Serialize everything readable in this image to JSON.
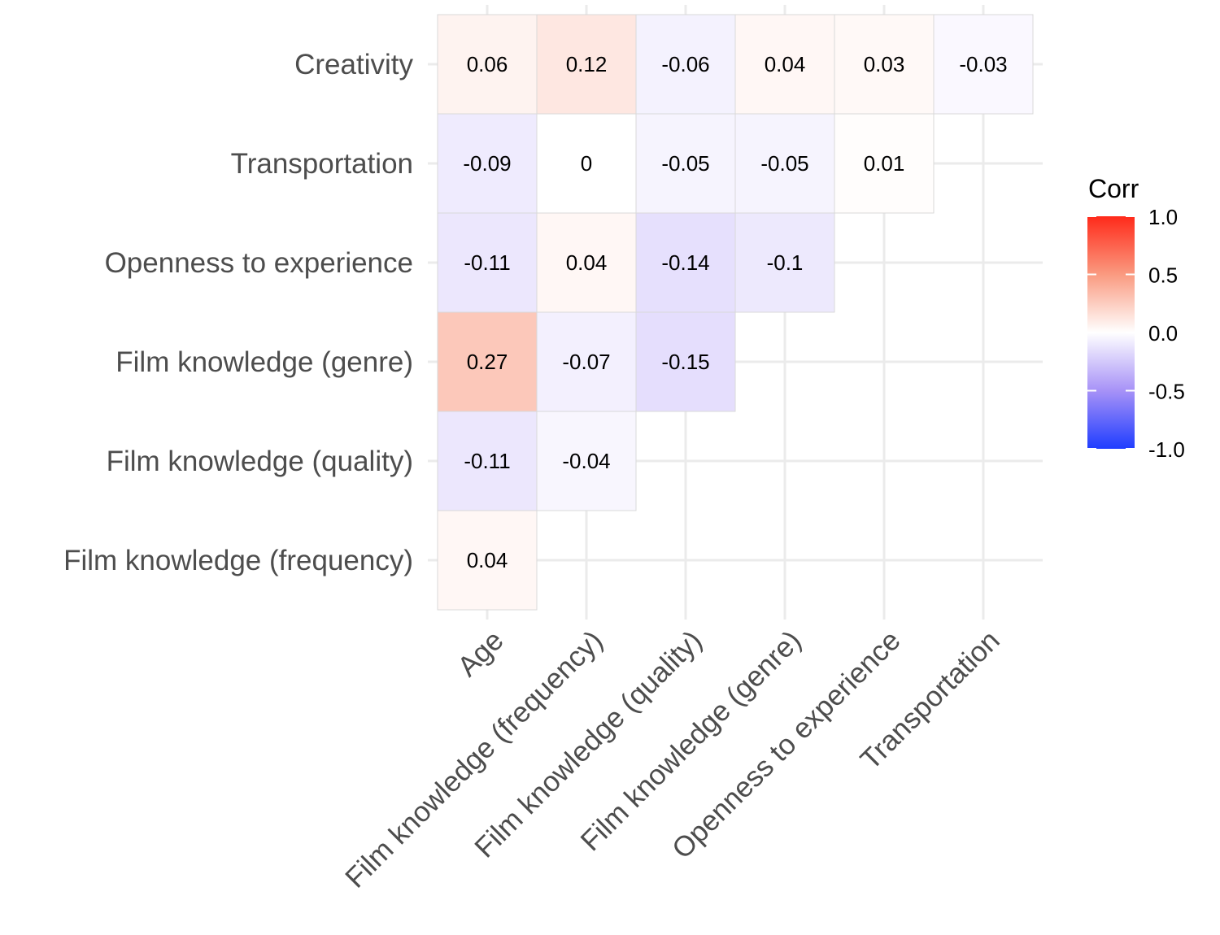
{
  "chart_data": {
    "type": "heatmap",
    "title": "",
    "xlabel": "",
    "ylabel": "",
    "x_categories": [
      "Age",
      "Film knowledge (frequency)",
      "Film knowledge (quality)",
      "Film knowledge (genre)",
      "Openness to experience",
      "Transportation"
    ],
    "y_categories": [
      "Film knowledge (frequency)",
      "Film knowledge (quality)",
      "Film knowledge (genre)",
      "Openness to experience",
      "Transportation",
      "Creativity"
    ],
    "cells": [
      {
        "x": "Age",
        "y": "Creativity",
        "value": 0.06
      },
      {
        "x": "Film knowledge (frequency)",
        "y": "Creativity",
        "value": 0.12
      },
      {
        "x": "Film knowledge (quality)",
        "y": "Creativity",
        "value": -0.06
      },
      {
        "x": "Film knowledge (genre)",
        "y": "Creativity",
        "value": 0.04
      },
      {
        "x": "Openness to experience",
        "y": "Creativity",
        "value": 0.03
      },
      {
        "x": "Transportation",
        "y": "Creativity",
        "value": -0.03
      },
      {
        "x": "Age",
        "y": "Transportation",
        "value": -0.09
      },
      {
        "x": "Film knowledge (frequency)",
        "y": "Transportation",
        "value": 0
      },
      {
        "x": "Film knowledge (quality)",
        "y": "Transportation",
        "value": -0.05
      },
      {
        "x": "Film knowledge (genre)",
        "y": "Transportation",
        "value": -0.05
      },
      {
        "x": "Openness to experience",
        "y": "Transportation",
        "value": 0.01
      },
      {
        "x": "Age",
        "y": "Openness to experience",
        "value": -0.11
      },
      {
        "x": "Film knowledge (frequency)",
        "y": "Openness to experience",
        "value": 0.04
      },
      {
        "x": "Film knowledge (quality)",
        "y": "Openness to experience",
        "value": -0.14
      },
      {
        "x": "Film knowledge (genre)",
        "y": "Openness to experience",
        "value": -0.1
      },
      {
        "x": "Age",
        "y": "Film knowledge (genre)",
        "value": 0.27
      },
      {
        "x": "Film knowledge (frequency)",
        "y": "Film knowledge (genre)",
        "value": -0.07
      },
      {
        "x": "Film knowledge (quality)",
        "y": "Film knowledge (genre)",
        "value": -0.15
      },
      {
        "x": "Age",
        "y": "Film knowledge (quality)",
        "value": -0.11
      },
      {
        "x": "Film knowledge (frequency)",
        "y": "Film knowledge (quality)",
        "value": -0.04
      },
      {
        "x": "Age",
        "y": "Film knowledge (frequency)",
        "value": 0.04
      }
    ],
    "legend": {
      "title": "Corr",
      "position": "right",
      "ticks": [
        1.0,
        0.5,
        0.0,
        -0.5,
        -1.0
      ],
      "tick_labels": [
        "1.0",
        "0.5",
        "0.0",
        "-0.5",
        "-1.0"
      ],
      "range": [
        -1,
        1
      ],
      "colors": {
        "low": "#1f3dff",
        "mid": "#ffffff",
        "high": "#ff2a1a"
      }
    },
    "grid": true
  }
}
